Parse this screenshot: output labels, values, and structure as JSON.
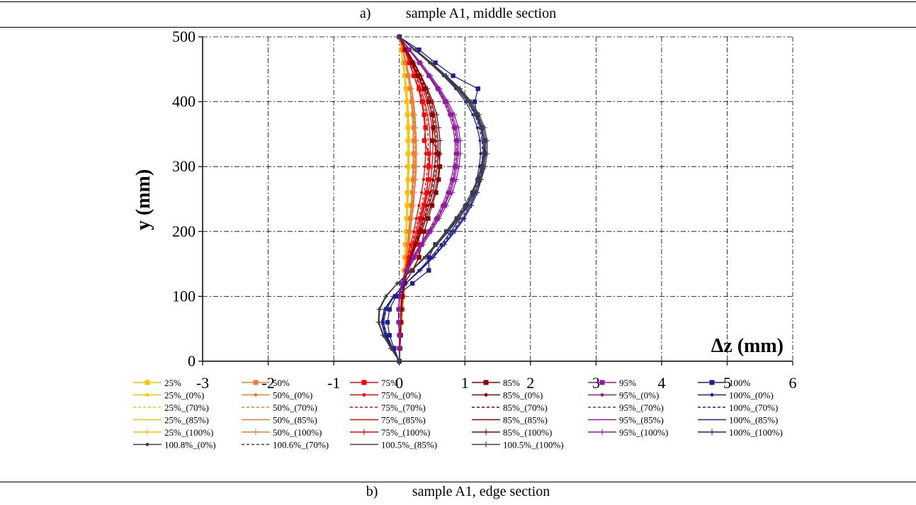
{
  "captions": {
    "top_tag": "a)",
    "top_text": "sample A1, middle section",
    "bottom_tag": "b)",
    "bottom_text": "sample A1, edge section"
  },
  "chart_data": {
    "type": "line",
    "xlabel": "Δz (mm)",
    "ylabel": "y (mm)",
    "xlim": [
      -3,
      6
    ],
    "ylim": [
      0,
      500
    ],
    "x_ticks": [
      -3,
      -2,
      -1,
      0,
      1,
      2,
      3,
      4,
      5,
      6
    ],
    "y_ticks": [
      0,
      100,
      200,
      300,
      400,
      500
    ],
    "grid": true,
    "grid_style": "dash-dot",
    "legend_position": "bottom",
    "y": [
      0,
      20,
      40,
      60,
      80,
      100,
      120,
      140,
      160,
      180,
      200,
      220,
      240,
      260,
      280,
      300,
      320,
      340,
      360,
      380,
      400,
      420,
      440,
      460,
      480,
      500
    ],
    "series": [
      {
        "name": "25%",
        "color": "#FFC000",
        "style": "solid",
        "marker": "square",
        "x": [
          0,
          0.01,
          0.02,
          0.03,
          0.04,
          0.05,
          0.06,
          0.07,
          0.08,
          0.09,
          0.1,
          0.11,
          0.12,
          0.12,
          0.13,
          0.13,
          0.13,
          0.13,
          0.13,
          0.12,
          0.11,
          0.1,
          0.08,
          0.06,
          0.03,
          0
        ]
      },
      {
        "name": "25%_(0%)",
        "color": "#FFC000",
        "style": "solid",
        "marker": "dot",
        "x": [
          0,
          0.01,
          0.02,
          0.03,
          0.04,
          0.05,
          0.06,
          0.07,
          0.08,
          0.09,
          0.1,
          0.11,
          0.11,
          0.12,
          0.12,
          0.13,
          0.13,
          0.13,
          0.12,
          0.12,
          0.11,
          0.09,
          0.08,
          0.05,
          0.03,
          0
        ]
      },
      {
        "name": "25%_(70%)",
        "color": "#FFC000",
        "style": "dashed",
        "marker": "none",
        "x": [
          0,
          0.01,
          0.02,
          0.03,
          0.04,
          0.05,
          0.06,
          0.07,
          0.08,
          0.09,
          0.1,
          0.11,
          0.12,
          0.13,
          0.13,
          0.14,
          0.14,
          0.14,
          0.14,
          0.13,
          0.12,
          0.1,
          0.08,
          0.06,
          0.03,
          0
        ]
      },
      {
        "name": "25%_(85%)",
        "color": "#FFC000",
        "style": "solid",
        "marker": "none",
        "x": [
          0,
          0.01,
          0.02,
          0.03,
          0.04,
          0.05,
          0.06,
          0.07,
          0.08,
          0.09,
          0.1,
          0.11,
          0.12,
          0.13,
          0.14,
          0.14,
          0.15,
          0.15,
          0.14,
          0.14,
          0.12,
          0.11,
          0.09,
          0.06,
          0.03,
          0
        ]
      },
      {
        "name": "25%_(100%)",
        "color": "#FFC000",
        "style": "solid",
        "marker": "plus",
        "x": [
          0,
          0.01,
          0.02,
          0.03,
          0.04,
          0.05,
          0.06,
          0.07,
          0.08,
          0.1,
          0.11,
          0.12,
          0.13,
          0.14,
          0.14,
          0.15,
          0.15,
          0.15,
          0.15,
          0.14,
          0.13,
          0.11,
          0.09,
          0.06,
          0.03,
          0
        ]
      },
      {
        "name": "50%",
        "color": "#ED7D31",
        "style": "solid",
        "marker": "square",
        "x": [
          0,
          0.01,
          0.02,
          0.03,
          0.05,
          0.06,
          0.08,
          0.09,
          0.11,
          0.13,
          0.15,
          0.17,
          0.19,
          0.2,
          0.21,
          0.22,
          0.22,
          0.22,
          0.22,
          0.21,
          0.19,
          0.16,
          0.13,
          0.09,
          0.05,
          0
        ]
      },
      {
        "name": "50%_(0%)",
        "color": "#ED7D31",
        "style": "solid",
        "marker": "dot",
        "x": [
          0,
          0.01,
          0.02,
          0.03,
          0.04,
          0.06,
          0.07,
          0.09,
          0.1,
          0.12,
          0.14,
          0.16,
          0.18,
          0.19,
          0.2,
          0.21,
          0.21,
          0.21,
          0.21,
          0.2,
          0.18,
          0.16,
          0.13,
          0.09,
          0.05,
          0
        ]
      },
      {
        "name": "50%_(70%)",
        "color": "#ED7D31",
        "style": "dashed",
        "marker": "none",
        "x": [
          0,
          0.01,
          0.02,
          0.03,
          0.05,
          0.06,
          0.08,
          0.1,
          0.12,
          0.14,
          0.16,
          0.18,
          0.2,
          0.21,
          0.22,
          0.23,
          0.24,
          0.24,
          0.23,
          0.22,
          0.2,
          0.18,
          0.14,
          0.1,
          0.05,
          0
        ]
      },
      {
        "name": "50%_(85%)",
        "color": "#ED7D31",
        "style": "solid",
        "marker": "none",
        "x": [
          0,
          0.01,
          0.02,
          0.04,
          0.05,
          0.07,
          0.08,
          0.1,
          0.12,
          0.14,
          0.16,
          0.19,
          0.21,
          0.22,
          0.24,
          0.24,
          0.25,
          0.25,
          0.24,
          0.23,
          0.21,
          0.18,
          0.15,
          0.1,
          0.05,
          0
        ]
      },
      {
        "name": "50%_(100%)",
        "color": "#ED7D31",
        "style": "solid",
        "marker": "plus",
        "x": [
          0,
          0.01,
          0.02,
          0.04,
          0.05,
          0.07,
          0.09,
          0.11,
          0.13,
          0.15,
          0.17,
          0.19,
          0.22,
          0.23,
          0.25,
          0.26,
          0.26,
          0.26,
          0.25,
          0.24,
          0.22,
          0.19,
          0.15,
          0.11,
          0.06,
          0
        ]
      },
      {
        "name": "75%",
        "color": "#FF0000",
        "style": "solid",
        "marker": "square",
        "x": [
          0,
          0,
          0.01,
          0.02,
          0.02,
          0.03,
          0.08,
          0.2,
          0.3,
          0.3,
          0.3,
          0.32,
          0.38,
          0.42,
          0.44,
          0.45,
          0.45,
          0.38,
          0.4,
          0.38,
          0.35,
          0.3,
          0.22,
          0.15,
          0.08,
          0
        ]
      },
      {
        "name": "75%_(0%)",
        "color": "#FF0000",
        "style": "solid",
        "marker": "dot",
        "x": [
          0,
          0.01,
          0.01,
          0.02,
          0.03,
          0.04,
          0.06,
          0.09,
          0.13,
          0.17,
          0.22,
          0.26,
          0.3,
          0.34,
          0.37,
          0.39,
          0.4,
          0.4,
          0.39,
          0.37,
          0.34,
          0.29,
          0.22,
          0.16,
          0.08,
          0
        ]
      },
      {
        "name": "75%_(70%)",
        "color": "#FF0000",
        "style": "dashed",
        "marker": "none",
        "x": [
          0,
          0.01,
          0.01,
          0.02,
          0.03,
          0.04,
          0.06,
          0.1,
          0.14,
          0.19,
          0.24,
          0.29,
          0.34,
          0.38,
          0.41,
          0.43,
          0.44,
          0.44,
          0.43,
          0.41,
          0.37,
          0.31,
          0.25,
          0.17,
          0.09,
          0
        ]
      },
      {
        "name": "75%_(85%)",
        "color": "#FF0000",
        "style": "solid",
        "marker": "none",
        "x": [
          0,
          0.01,
          0.01,
          0.02,
          0.03,
          0.04,
          0.07,
          0.1,
          0.15,
          0.2,
          0.26,
          0.31,
          0.36,
          0.41,
          0.44,
          0.46,
          0.47,
          0.47,
          0.46,
          0.43,
          0.39,
          0.33,
          0.26,
          0.18,
          0.09,
          0
        ]
      },
      {
        "name": "75%_(100%)",
        "color": "#FF0000",
        "style": "solid",
        "marker": "plus",
        "x": [
          0,
          0.01,
          0.01,
          0.02,
          0.03,
          0.05,
          0.07,
          0.11,
          0.16,
          0.22,
          0.28,
          0.34,
          0.39,
          0.44,
          0.48,
          0.5,
          0.51,
          0.51,
          0.5,
          0.47,
          0.42,
          0.36,
          0.28,
          0.19,
          0.1,
          0
        ]
      },
      {
        "name": "85%",
        "color": "#8B0000",
        "style": "solid",
        "marker": "square",
        "x": [
          0,
          0.01,
          0.02,
          0.02,
          0.03,
          0.04,
          0.08,
          0.2,
          0.3,
          0.34,
          0.38,
          0.44,
          0.5,
          0.56,
          0.6,
          0.62,
          0.6,
          0.5,
          0.52,
          0.5,
          0.45,
          0.38,
          0.28,
          0.19,
          0.1,
          0
        ]
      },
      {
        "name": "85%_(0%)",
        "color": "#8B0000",
        "style": "solid",
        "marker": "dot",
        "x": [
          0,
          0.01,
          0.01,
          0.02,
          0.03,
          0.04,
          0.07,
          0.11,
          0.17,
          0.23,
          0.3,
          0.36,
          0.42,
          0.47,
          0.51,
          0.54,
          0.55,
          0.55,
          0.53,
          0.5,
          0.45,
          0.38,
          0.29,
          0.2,
          0.1,
          0
        ]
      },
      {
        "name": "85%_(70%)",
        "color": "#8B0000",
        "style": "dashed",
        "marker": "none",
        "x": [
          0,
          0.01,
          0.01,
          0.02,
          0.03,
          0.05,
          0.08,
          0.12,
          0.18,
          0.24,
          0.31,
          0.38,
          0.44,
          0.49,
          0.53,
          0.56,
          0.57,
          0.57,
          0.55,
          0.52,
          0.47,
          0.4,
          0.3,
          0.21,
          0.1,
          0
        ]
      },
      {
        "name": "85%_(85%)",
        "color": "#8B0000",
        "style": "solid",
        "marker": "none",
        "x": [
          0,
          0.01,
          0.01,
          0.02,
          0.03,
          0.05,
          0.08,
          0.12,
          0.18,
          0.25,
          0.32,
          0.39,
          0.45,
          0.51,
          0.55,
          0.58,
          0.59,
          0.59,
          0.57,
          0.54,
          0.49,
          0.41,
          0.32,
          0.22,
          0.11,
          0
        ]
      },
      {
        "name": "85%_(100%)",
        "color": "#8B0000",
        "style": "solid",
        "marker": "plus",
        "x": [
          0,
          0.01,
          0.01,
          0.02,
          0.03,
          0.05,
          0.08,
          0.13,
          0.19,
          0.26,
          0.34,
          0.41,
          0.48,
          0.54,
          0.58,
          0.61,
          0.62,
          0.62,
          0.6,
          0.57,
          0.51,
          0.43,
          0.33,
          0.23,
          0.11,
          0
        ]
      },
      {
        "name": "95%",
        "color": "#8E1A9E",
        "style": "solid",
        "marker": "square",
        "x": [
          0,
          0,
          0,
          -0.01,
          -0.01,
          0,
          0.04,
          0.12,
          0.22,
          0.34,
          0.46,
          0.58,
          0.68,
          0.76,
          0.82,
          0.86,
          0.88,
          0.88,
          0.85,
          0.79,
          0.7,
          0.59,
          0.45,
          0.31,
          0.15,
          0
        ]
      },
      {
        "name": "95%_(0%)",
        "color": "#8E1A9E",
        "style": "solid",
        "marker": "dot",
        "x": [
          0,
          0,
          0,
          -0.01,
          -0.01,
          0,
          0.03,
          0.1,
          0.2,
          0.32,
          0.44,
          0.55,
          0.65,
          0.73,
          0.79,
          0.83,
          0.85,
          0.85,
          0.82,
          0.76,
          0.68,
          0.57,
          0.44,
          0.3,
          0.15,
          0
        ]
      },
      {
        "name": "95%_(70%)",
        "color": "#8E1A9E",
        "style": "dashed",
        "marker": "none",
        "x": [
          0,
          0,
          0,
          -0.01,
          -0.01,
          0,
          0.04,
          0.11,
          0.21,
          0.33,
          0.45,
          0.57,
          0.67,
          0.75,
          0.81,
          0.85,
          0.87,
          0.87,
          0.84,
          0.78,
          0.69,
          0.58,
          0.45,
          0.3,
          0.15,
          0
        ]
      },
      {
        "name": "95%_(85%)",
        "color": "#8E1A9E",
        "style": "solid",
        "marker": "none",
        "x": [
          0,
          0,
          0,
          -0.01,
          -0.01,
          0,
          0.04,
          0.12,
          0.22,
          0.34,
          0.47,
          0.59,
          0.69,
          0.78,
          0.84,
          0.88,
          0.9,
          0.9,
          0.87,
          0.81,
          0.72,
          0.6,
          0.46,
          0.31,
          0.16,
          0
        ]
      },
      {
        "name": "95%_(100%)",
        "color": "#8E1A9E",
        "style": "solid",
        "marker": "plus",
        "x": [
          0,
          0,
          0,
          -0.01,
          -0.01,
          0.01,
          0.05,
          0.13,
          0.24,
          0.36,
          0.49,
          0.61,
          0.72,
          0.81,
          0.87,
          0.91,
          0.93,
          0.93,
          0.9,
          0.84,
          0.74,
          0.62,
          0.48,
          0.33,
          0.16,
          0
        ]
      },
      {
        "name": "100%",
        "color": "#1F1F8F",
        "style": "solid",
        "marker": "square",
        "x": [
          0,
          -0.08,
          -0.15,
          -0.18,
          -0.15,
          -0.05,
          0.2,
          0.45,
          0.45,
          0.55,
          0.72,
          0.88,
          1.02,
          1.12,
          1.2,
          1.26,
          1.3,
          1.3,
          1.25,
          1.18,
          1.15,
          1.2,
          0.82,
          0.55,
          0.3,
          0
        ]
      },
      {
        "name": "100%_(0%)",
        "color": "#1F1F8F",
        "style": "solid",
        "marker": "dot",
        "x": [
          0,
          -0.1,
          -0.19,
          -0.24,
          -0.2,
          -0.08,
          0.1,
          0.3,
          0.48,
          0.64,
          0.79,
          0.92,
          1.03,
          1.12,
          1.18,
          1.22,
          1.24,
          1.23,
          1.19,
          1.12,
          1.01,
          0.86,
          0.67,
          0.46,
          0.23,
          0
        ]
      },
      {
        "name": "100%_(70%)",
        "color": "#1F1F8F",
        "style": "dashed",
        "marker": "none",
        "x": [
          0,
          -0.11,
          -0.2,
          -0.25,
          -0.21,
          -0.08,
          0.1,
          0.31,
          0.5,
          0.66,
          0.81,
          0.95,
          1.06,
          1.15,
          1.21,
          1.25,
          1.27,
          1.26,
          1.22,
          1.15,
          1.04,
          0.88,
          0.69,
          0.47,
          0.24,
          0
        ]
      },
      {
        "name": "100%_(85%)",
        "color": "#1F1F8F",
        "style": "solid",
        "marker": "none",
        "x": [
          0,
          -0.11,
          -0.21,
          -0.26,
          -0.22,
          -0.09,
          0.1,
          0.31,
          0.51,
          0.68,
          0.83,
          0.97,
          1.08,
          1.17,
          1.23,
          1.27,
          1.29,
          1.28,
          1.24,
          1.17,
          1.06,
          0.9,
          0.7,
          0.48,
          0.24,
          0
        ]
      },
      {
        "name": "100%_(100%)",
        "color": "#1F1F8F",
        "style": "solid",
        "marker": "plus",
        "x": [
          0,
          -0.12,
          -0.22,
          -0.27,
          -0.23,
          -0.09,
          0.1,
          0.32,
          0.52,
          0.69,
          0.85,
          0.99,
          1.1,
          1.19,
          1.25,
          1.29,
          1.31,
          1.3,
          1.26,
          1.19,
          1.08,
          0.92,
          0.71,
          0.49,
          0.25,
          0
        ]
      },
      {
        "name": "100.8%_(0%)",
        "color": "#404040",
        "style": "solid",
        "marker": "dot",
        "x": [
          0,
          -0.12,
          -0.24,
          -0.31,
          -0.3,
          -0.2,
          -0.03,
          0.18,
          0.38,
          0.55,
          0.71,
          0.86,
          0.99,
          1.1,
          1.19,
          1.25,
          1.28,
          1.28,
          1.24,
          1.16,
          1.04,
          0.88,
          0.68,
          0.46,
          0.23,
          0
        ]
      },
      {
        "name": "100.6%_(70%)",
        "color": "#404040",
        "style": "dashed",
        "marker": "none",
        "x": [
          0,
          -0.12,
          -0.24,
          -0.31,
          -0.3,
          -0.2,
          -0.03,
          0.18,
          0.38,
          0.56,
          0.72,
          0.87,
          1.01,
          1.12,
          1.21,
          1.27,
          1.3,
          1.3,
          1.26,
          1.18,
          1.06,
          0.9,
          0.7,
          0.47,
          0.24,
          0
        ]
      },
      {
        "name": "100.5%_(85%)",
        "color": "#404040",
        "style": "solid",
        "marker": "none",
        "x": [
          0,
          -0.13,
          -0.25,
          -0.32,
          -0.31,
          -0.21,
          -0.03,
          0.18,
          0.39,
          0.57,
          0.74,
          0.89,
          1.03,
          1.14,
          1.23,
          1.29,
          1.32,
          1.32,
          1.28,
          1.2,
          1.08,
          0.92,
          0.71,
          0.48,
          0.24,
          0
        ]
      },
      {
        "name": "100.5%_(100%)",
        "color": "#404040",
        "style": "solid",
        "marker": "plus",
        "x": [
          0,
          -0.13,
          -0.25,
          -0.32,
          -0.31,
          -0.21,
          -0.03,
          0.19,
          0.4,
          0.58,
          0.75,
          0.91,
          1.05,
          1.16,
          1.25,
          1.31,
          1.34,
          1.34,
          1.3,
          1.22,
          1.1,
          0.93,
          0.72,
          0.49,
          0.25,
          0
        ]
      }
    ]
  }
}
